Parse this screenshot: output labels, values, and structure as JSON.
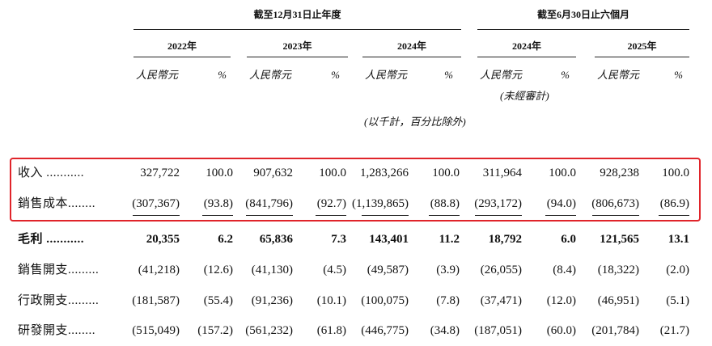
{
  "header": {
    "groups": [
      {
        "label": "截至12月31日止年度"
      },
      {
        "label": "截至6月30日止六個月"
      }
    ],
    "years": [
      {
        "year": "2022年",
        "units": [
          "人民幣元",
          "%"
        ]
      },
      {
        "year": "2023年",
        "units": [
          "人民幣元",
          "%"
        ]
      },
      {
        "year": "2024年",
        "units": [
          "人民幣元",
          "%"
        ]
      },
      {
        "year": "2024年",
        "units": [
          "人民幣元",
          "%"
        ],
        "note": "(未經審計)"
      },
      {
        "year": "2025年",
        "units": [
          "人民幣元",
          "%"
        ]
      }
    ],
    "unit_note": "(以千計，百分比除外)"
  },
  "table": {
    "rows": [
      {
        "label": "收入 ...........",
        "values": [
          "327,722",
          "100.0",
          "907,632",
          "100.0",
          "1,283,266",
          "100.0",
          "311,964",
          "100.0",
          "928,238",
          "100.0"
        ]
      },
      {
        "label": "銷售成本........",
        "values": [
          "(307,367)",
          "(93.8)",
          "(841,796)",
          "(92.7)",
          "(1,139,865)",
          "(88.8)",
          "(293,172)",
          "(94.0)",
          "(806,673)",
          "(86.9)"
        ]
      },
      {
        "label": "毛利 ...........",
        "values": [
          "20,355",
          "6.2",
          "65,836",
          "7.3",
          "143,401",
          "11.2",
          "18,792",
          "6.0",
          "121,565",
          "13.1"
        ]
      },
      {
        "label": "銷售開支.........",
        "values": [
          "(41,218)",
          "(12.6)",
          "(41,130)",
          "(4.5)",
          "(49,587)",
          "(3.9)",
          "(26,055)",
          "(8.4)",
          "(18,322)",
          "(2.0)"
        ]
      },
      {
        "label": "行政開支.........",
        "values": [
          "(181,587)",
          "(55.4)",
          "(91,236)",
          "(10.1)",
          "(100,075)",
          "(7.8)",
          "(37,471)",
          "(12.0)",
          "(46,951)",
          "(5.1)"
        ]
      },
      {
        "label": "研發開支........",
        "values": [
          "(515,049)",
          "(157.2)",
          "(561,232)",
          "(61.8)",
          "(446,775)",
          "(34.8)",
          "(187,051)",
          "(60.0)",
          "(201,784)",
          "(21.7)"
        ]
      }
    ]
  }
}
